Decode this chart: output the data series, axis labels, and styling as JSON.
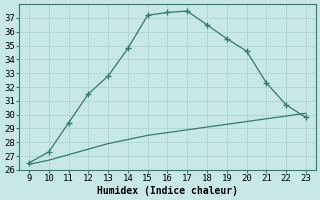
{
  "x": [
    9,
    10,
    11,
    12,
    13,
    14,
    15,
    16,
    17,
    18,
    19,
    20,
    21,
    22,
    23
  ],
  "y_upper": [
    26.5,
    27.3,
    29.4,
    31.5,
    32.8,
    34.8,
    37.2,
    37.4,
    37.5,
    36.5,
    35.5,
    34.6,
    32.3,
    30.7,
    29.8
  ],
  "y_lower": [
    26.4,
    26.7,
    27.1,
    27.5,
    27.9,
    28.2,
    28.5,
    28.7,
    28.9,
    29.1,
    29.3,
    29.5,
    29.7,
    29.9,
    30.1
  ],
  "line_color": "#2e7d6e",
  "bg_color": "#c8e8e8",
  "grid_color": "#b0d4d0",
  "xlabel": "Humidex (Indice chaleur)",
  "ylim": [
    26,
    38
  ],
  "xlim": [
    8.5,
    23.5
  ],
  "yticks": [
    26,
    27,
    28,
    29,
    30,
    31,
    32,
    33,
    34,
    35,
    36,
    37
  ],
  "xticks": [
    9,
    10,
    11,
    12,
    13,
    14,
    15,
    16,
    17,
    18,
    19,
    20,
    21,
    22,
    23
  ],
  "marker": "+",
  "markersize": 4,
  "markeredgewidth": 1.0,
  "linewidth": 0.9,
  "xlabel_fontsize": 7,
  "tick_fontsize": 6.5
}
